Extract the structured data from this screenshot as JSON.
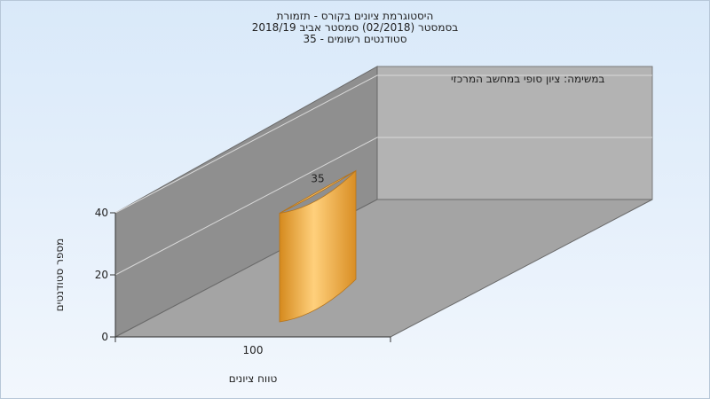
{
  "titles": [
    "היסטוגרמת ציונים בקורס - תזמורת",
    "בסמסטר  (02/2018)  סמסטר אביב 2018/19",
    "סטודנטים רשומים - 35"
  ],
  "chart_data": {
    "type": "bar",
    "subtitle": "במשימה: ציון סופי במחשב המרכזי",
    "categories": [
      "100"
    ],
    "series": [
      {
        "values": [
          35
        ]
      }
    ],
    "data_labels": [
      "35"
    ],
    "xlabel": "טווח ציונים",
    "ylabel": "מספר סטודנטים",
    "ylim": [
      0,
      40
    ],
    "yticks": [
      "0",
      "20",
      "40"
    ],
    "grid": true,
    "bar_color": "#f0a43a"
  }
}
